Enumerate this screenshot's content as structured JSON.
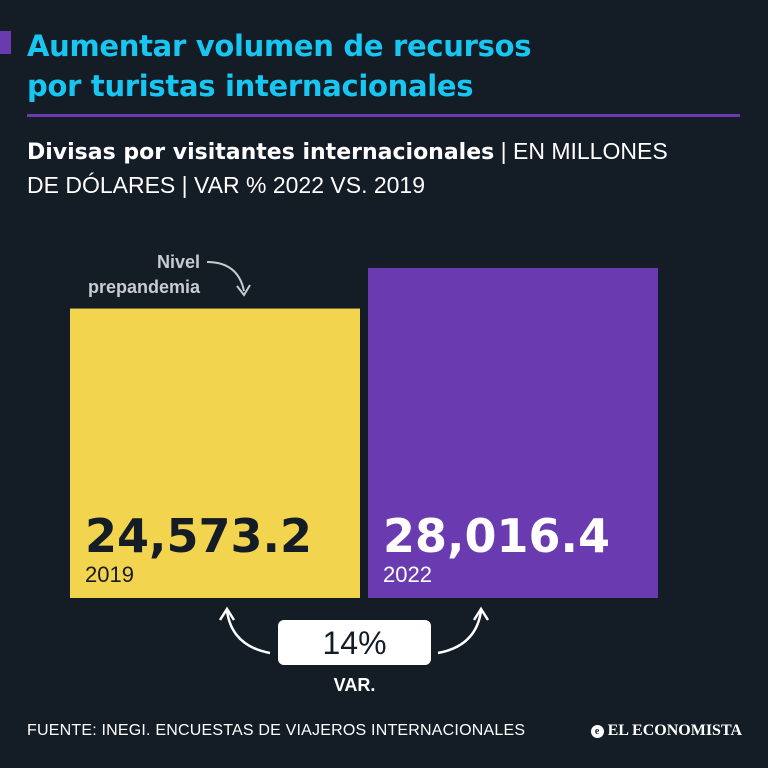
{
  "headline": {
    "line1": "Aumentar volumen de recursos",
    "line2": "por turistas internacionales"
  },
  "subtitle": {
    "strong": "Divisas por visitantes internacionales",
    "rest1": " | EN MILLONES",
    "rest2": "DE DÓLARES | VAR % 2022 VS. 2019"
  },
  "chart_data": {
    "type": "bar",
    "title": "Divisas por visitantes internacionales",
    "ylabel": "EN MILLONES DE DÓLARES",
    "categories": [
      "2019",
      "2022"
    ],
    "values": [
      24573.2,
      28016.4
    ],
    "value_labels": [
      "24,573.2",
      "28,016.4"
    ],
    "colors": [
      "#f2d44e",
      "#6a3bb0"
    ],
    "value_text_colors": [
      "#141c26",
      "#ffffff"
    ],
    "year_text_colors": [
      "#141c26",
      "#ffffff"
    ],
    "annotation": "Nivel prepandemia",
    "annotation_lines": [
      "Nivel",
      "prepandemia"
    ],
    "variation": "14%",
    "variation_label": "VAR."
  },
  "footer": {
    "source": "FUENTE: INEGI. ENCUESTAS DE VIAJEROS INTERNACIONALES",
    "logo_mark": "e",
    "logo": "EL ECONOMISTA"
  }
}
